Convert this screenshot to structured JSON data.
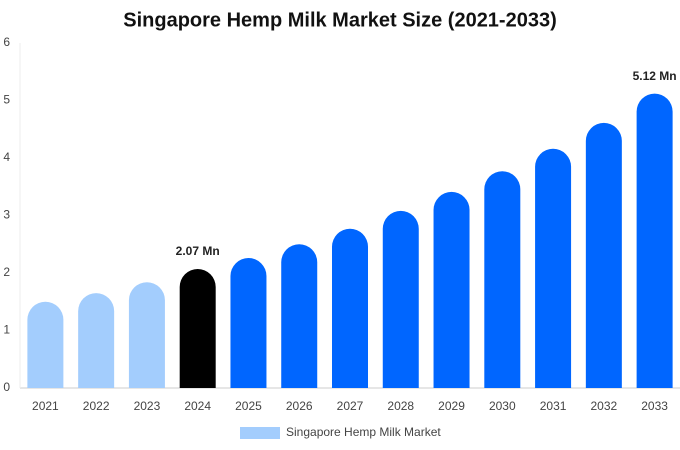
{
  "chart_data": {
    "type": "bar",
    "title": "Singapore Hemp Milk Market Size (2021-2033)",
    "categories": [
      "2021",
      "2022",
      "2023",
      "2024",
      "2025",
      "2026",
      "2027",
      "2028",
      "2029",
      "2030",
      "2031",
      "2032",
      "2033"
    ],
    "series": [
      {
        "name": "Singapore Hemp Milk Market",
        "color": "#a3cdfd",
        "values": [
          1.5,
          1.65,
          1.84,
          2.07,
          2.26,
          2.5,
          2.77,
          3.08,
          3.41,
          3.77,
          4.16,
          4.61,
          5.12
        ],
        "value_labels": [
          null,
          null,
          null,
          "2.07 Mn",
          null,
          null,
          null,
          null,
          null,
          null,
          null,
          null,
          "5.12 Mn"
        ],
        "colors": [
          "#a3cdfd",
          "#a3cdfd",
          "#a3cdfd",
          "#000000",
          "#0066ff",
          "#0066ff",
          "#0066ff",
          "#0066ff",
          "#0066ff",
          "#0066ff",
          "#0066ff",
          "#0066ff",
          "#0066ff"
        ]
      }
    ],
    "ylim": [
      0,
      6
    ],
    "yticks": [
      0,
      1,
      2,
      3,
      4,
      5,
      6
    ],
    "grid": false,
    "legend": "bottom"
  }
}
